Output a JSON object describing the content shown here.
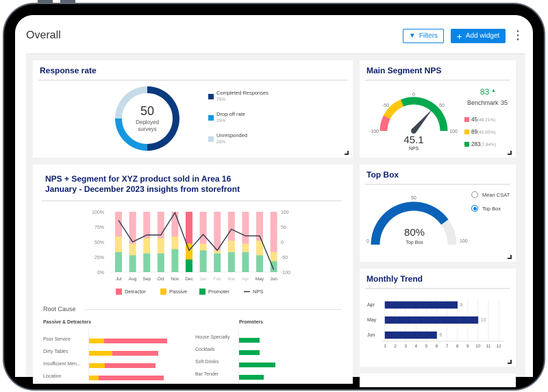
{
  "header": {
    "title": "Overall",
    "filters_label": "Filters",
    "add_widget_label": "Add widget"
  },
  "colors": {
    "navy": "#0b1f6b",
    "accent": "#0a84e6",
    "detractor": "#ff6b80",
    "passive": "#ffc60a",
    "promoter": "#00a94f"
  },
  "response_rate": {
    "title": "Response rate",
    "total": "50",
    "total_label_1": "Deployed",
    "total_label_2": "surveys",
    "legend": [
      {
        "label": "Completed Responses",
        "value": "75%",
        "color": "#0b3a7e"
      },
      {
        "label": "Drop-off rate",
        "value": "25%",
        "color": "#1597e0"
      },
      {
        "label": "Unresponded",
        "value": "25%",
        "color": "#c5dce8"
      }
    ]
  },
  "nps": {
    "title": "Main Segment NPS",
    "score": "83",
    "benchmark_label": "Benchmark",
    "benchmark_value": "35",
    "value": 45.1,
    "value_text": "45.1",
    "value_label": "NPS",
    "ticks": [
      "-100",
      "-50",
      "0",
      "50",
      "100"
    ],
    "breakdown": [
      {
        "count": "45",
        "pct": "(48.21%)",
        "color": "#ff6b80"
      },
      {
        "count": "89",
        "pct": "(43.95%)",
        "color": "#ffc60a"
      },
      {
        "count": "283",
        "pct": "(7.84%)",
        "color": "#00a94f"
      }
    ]
  },
  "segment_chart": {
    "title_1": "NPS + Segment for XYZ product sold in Area 16",
    "title_2": "January - December 2023 insights from storefront"
  },
  "chart_data": {
    "type": "bar",
    "categories": [
      "Jul",
      "Aug",
      "Sep",
      "Oct",
      "Nov",
      "Dec",
      "Jan",
      "Feb",
      "Mar",
      "Apr",
      "May",
      "Jun"
    ],
    "series": [
      {
        "name": "Promoter",
        "values": [
          33,
          28,
          31,
          31,
          38,
          21,
          36,
          31,
          33,
          33,
          28,
          18
        ]
      },
      {
        "name": "Passive",
        "values": [
          26,
          19,
          25,
          25,
          21,
          26,
          11,
          5,
          19,
          14,
          24,
          15
        ]
      },
      {
        "name": "Detractor",
        "values": [
          41,
          53,
          44,
          44,
          41,
          53,
          53,
          64,
          48,
          53,
          48,
          67
        ]
      },
      {
        "name": "NPS",
        "type": "line",
        "axis": "right",
        "values": [
          72,
          0,
          23,
          23,
          97,
          -28,
          25,
          -28,
          42,
          20,
          20,
          -92
        ]
      }
    ],
    "highlighted": "Dec",
    "left_ticks": [
      "100%",
      "75%",
      "50%",
      "25%",
      "0%"
    ],
    "right_ticks": [
      "100",
      "50",
      "0",
      "-50",
      "-100"
    ],
    "ylim": [
      0,
      100
    ],
    "y2lim": [
      -100,
      100
    ],
    "legend": [
      "Detractor",
      "Passive",
      "Promoter",
      "NPS"
    ],
    "legend_position": "bottom"
  },
  "root_cause": {
    "title": "Root Cause",
    "left_title": "Passive & Detractors",
    "right_title": "Promoters",
    "passive_detractors": [
      {
        "label": "Poor Service",
        "passive": 20,
        "detractor": 84
      },
      {
        "label": "Dirty Tables",
        "passive": 31,
        "detractor": 61
      },
      {
        "label": "Insufficient Men...",
        "passive": 21,
        "detractor": 67
      },
      {
        "label": "Location",
        "passive": 13,
        "detractor": 86
      }
    ],
    "promoters": [
      {
        "label": "House Specialty",
        "value": 27
      },
      {
        "label": "Cocktails",
        "value": 27
      },
      {
        "label": "Soft Drinks",
        "value": 48
      },
      {
        "label": "Bar Tender",
        "value": 33
      }
    ]
  },
  "top_box": {
    "title": "Top Box",
    "value": 80,
    "value_text": "80%",
    "value_label": "Top Box",
    "ticks": [
      "0",
      "50",
      "100"
    ],
    "options": [
      {
        "label": "Mean CSAT",
        "selected": false
      },
      {
        "label": "Top Box",
        "selected": true
      }
    ]
  },
  "monthly_trend": {
    "title": "Monthly Trend",
    "categories": [
      "Apr",
      "May",
      "Jun"
    ],
    "values": [
      8,
      10,
      6
    ],
    "labels": [
      "8",
      "10",
      "6"
    ],
    "xticks": [
      "1",
      "2",
      "3",
      "4",
      "5",
      "6",
      "7",
      "8",
      "9",
      "10",
      "11",
      "12"
    ]
  }
}
